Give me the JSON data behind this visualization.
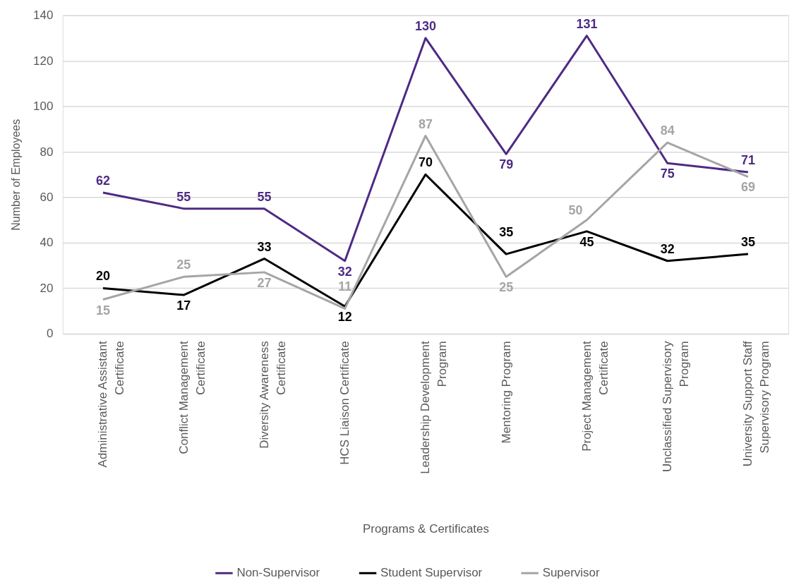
{
  "chart_data": {
    "type": "line",
    "categories": [
      "Administrative Assistant Certificate",
      "Conflict Management Certificate",
      "Diversity Awareness Certificate",
      "HCS Liaison Certificate",
      "Leadership Development Program",
      "Mentoring Program",
      "Project Management Certificate",
      "Unclassified Supervisory Program",
      "University Support Staff Supervisory Program"
    ],
    "series": [
      {
        "name": "Non-Supervisor",
        "color": "#4e2a84",
        "values": [
          62,
          55,
          55,
          32,
          130,
          79,
          131,
          75,
          71
        ]
      },
      {
        "name": "Student Supervisor",
        "color": "#000000",
        "values": [
          20,
          17,
          33,
          12,
          70,
          35,
          45,
          32,
          35
        ]
      },
      {
        "name": "Supervisor",
        "color": "#a5a5a5",
        "values": [
          15,
          25,
          27,
          11,
          87,
          25,
          50,
          84,
          69
        ]
      }
    ],
    "xlabel": "Programs & Certificates",
    "ylabel": "Number of Employees",
    "ylim": [
      0,
      140
    ],
    "yticks": [
      0,
      20,
      40,
      60,
      80,
      100,
      120,
      140
    ],
    "grid": "y",
    "legend": "bottom",
    "line_style": "solid",
    "data_labels": true
  }
}
